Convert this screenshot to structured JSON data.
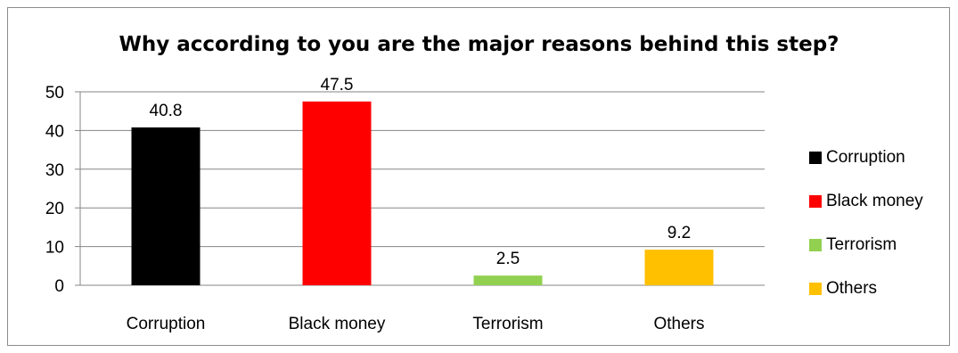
{
  "chart_data": {
    "type": "bar",
    "title": "Why according to you are the major reasons behind this step?",
    "categories": [
      "Corruption",
      "Black money",
      "Terrorism",
      "Others"
    ],
    "values": [
      40.8,
      47.5,
      2.5,
      9.2
    ],
    "data_labels": [
      "40.8",
      "47.5",
      "2.5",
      "9.2"
    ],
    "colors": [
      "#000000",
      "#ff0000",
      "#92d050",
      "#ffc000"
    ],
    "ylim": [
      0,
      50
    ],
    "yticks": [
      0,
      10,
      20,
      30,
      40,
      50
    ],
    "grid": true,
    "legend": {
      "placement": "right",
      "entries": [
        "Corruption",
        "Black money",
        "Terrorism",
        "Others"
      ]
    },
    "xlabel": "",
    "ylabel": ""
  }
}
